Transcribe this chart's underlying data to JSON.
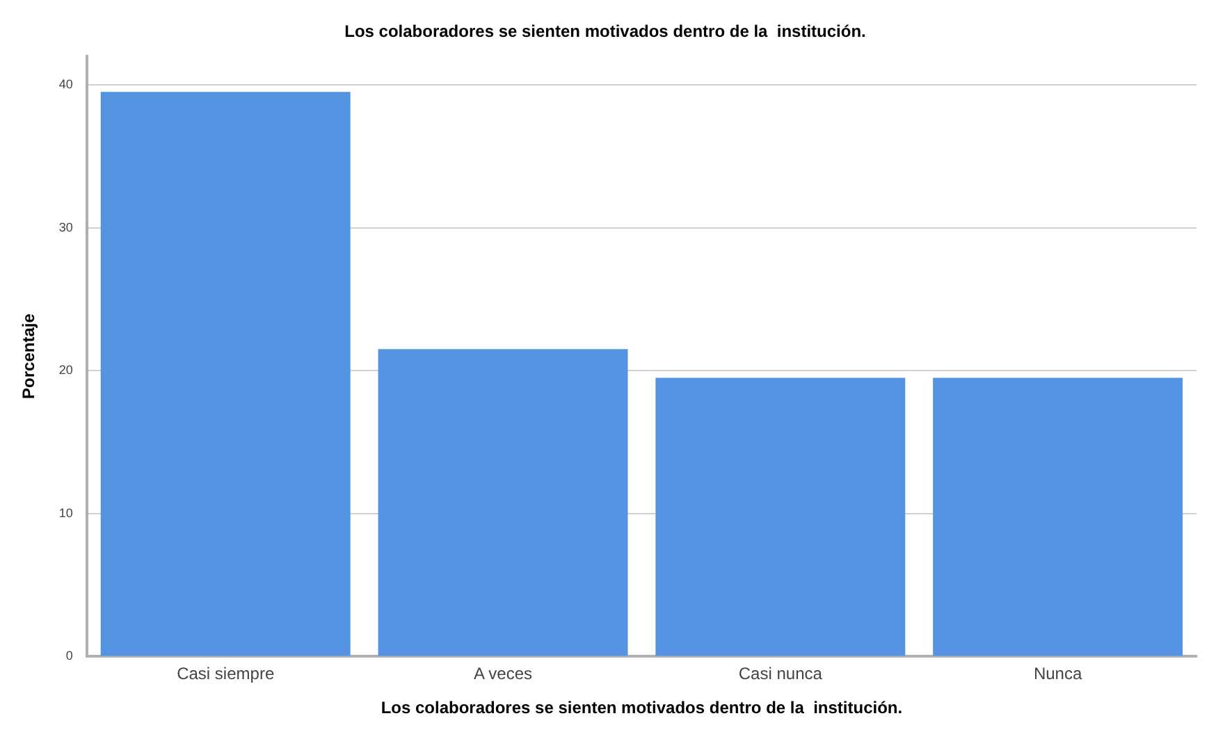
{
  "chart_data": {
    "type": "bar",
    "title": "Los colaboradores se sienten motivados dentro de la  institución.",
    "xlabel": "Los colaboradores se sienten motivados dentro de la  institución.",
    "ylabel": "Porcentaje",
    "categories": [
      "Casi siempre",
      "A veces",
      "Casi nunca",
      "Nunca"
    ],
    "values": [
      39.5,
      21.5,
      19.5,
      19.5
    ],
    "color": "#5393e2",
    "ylim": [
      0,
      42
    ],
    "yticks": [
      0,
      10,
      20,
      30,
      40
    ],
    "grid": "y"
  }
}
